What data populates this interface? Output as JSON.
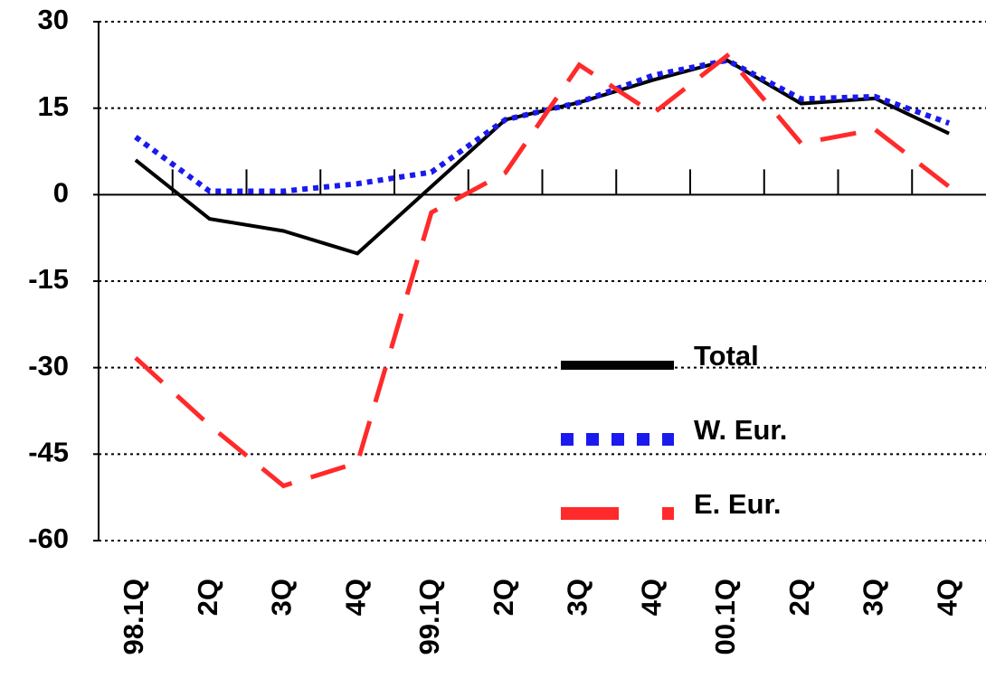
{
  "chart_data": {
    "type": "line",
    "categories": [
      "98.1Q",
      "2Q",
      "3Q",
      "4Q",
      "99.1Q",
      "2Q",
      "3Q",
      "4Q",
      "00.1Q",
      "2Q",
      "3Q",
      "4Q"
    ],
    "series": [
      {
        "name": "Total",
        "color": "#000000",
        "style": "solid",
        "values": [
          6,
          -4.2,
          -6.3,
          -10.2,
          1.4,
          13,
          16,
          19.9,
          23.3,
          15.8,
          16.7,
          10.6
        ]
      },
      {
        "name": "W. Eur.",
        "color": "#1a1aee",
        "style": "dotted",
        "values": [
          10,
          0.6,
          0.6,
          1.9,
          3.9,
          13,
          16,
          20.7,
          23.3,
          16.6,
          17,
          12.4
        ]
      },
      {
        "name": "E. Eur.",
        "color": "#ff2a2a",
        "style": "dashed",
        "values": [
          -28.3,
          -40,
          -50.5,
          -46.5,
          -3.1,
          3.8,
          22.5,
          14.1,
          24.1,
          8.9,
          11.3,
          1.4
        ]
      }
    ],
    "ylim": [
      -60,
      30
    ],
    "yticks": [
      30,
      15,
      0,
      -15,
      -30,
      -45,
      -60
    ],
    "grid": true,
    "legend": "right"
  }
}
